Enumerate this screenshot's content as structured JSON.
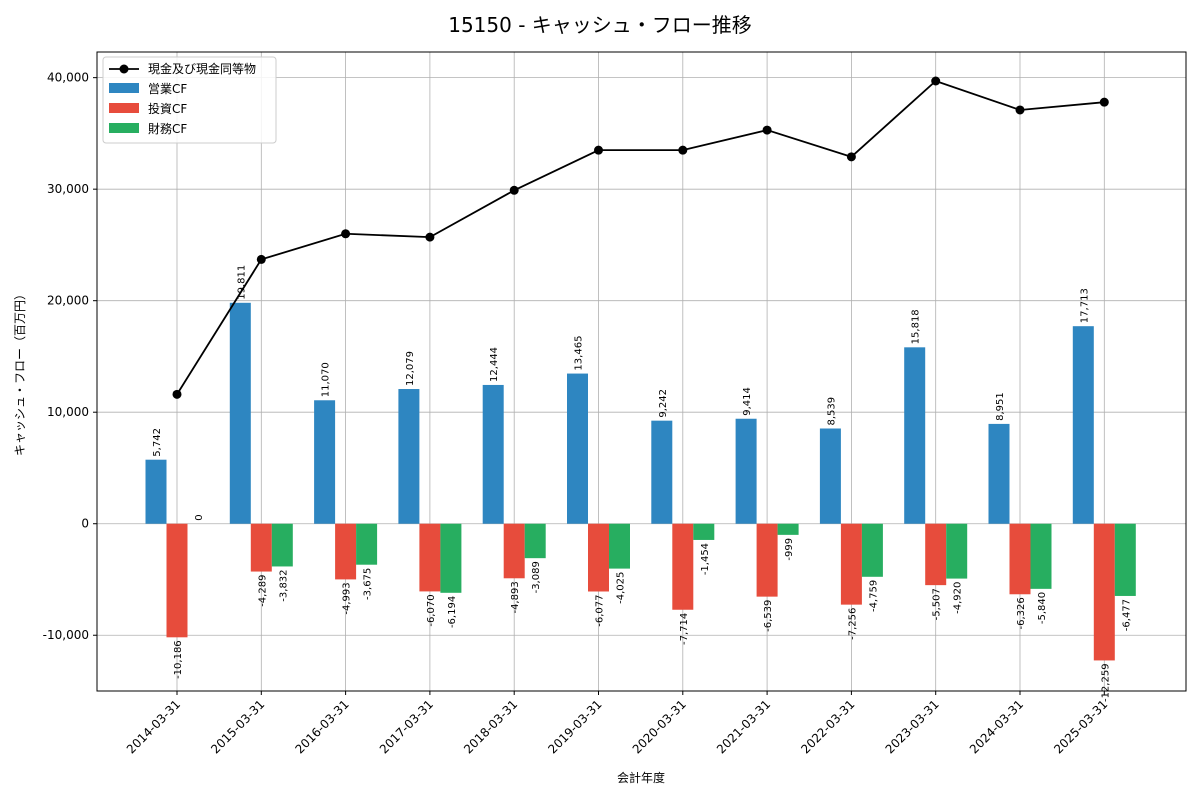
{
  "chart_data": {
    "type": "bar",
    "title": "15150 - キャッシュ・フロー推移",
    "xlabel": "会計年度",
    "ylabel": "キャッシュ・フロー（百万円）",
    "categories": [
      "2014-03-31",
      "2015-03-31",
      "2016-03-31",
      "2017-03-31",
      "2018-03-31",
      "2019-03-31",
      "2020-03-31",
      "2021-03-31",
      "2022-03-31",
      "2023-03-31",
      "2024-03-31",
      "2025-03-31"
    ],
    "ylim": [
      -15000,
      42300
    ],
    "yticks": [
      -10000,
      0,
      10000,
      20000,
      30000,
      40000
    ],
    "ytick_labels": [
      "-10,000",
      "0",
      "10,000",
      "20,000",
      "30,000",
      "40,000"
    ],
    "grid": true,
    "legend_position": "top-left",
    "line": {
      "name": "現金及び現金同等物",
      "color": "#000000",
      "values": [
        11600,
        23700,
        26000,
        25700,
        29900,
        33500,
        33500,
        35300,
        32900,
        39700,
        37100,
        37800
      ]
    },
    "series": [
      {
        "name": "営業CF",
        "color": "#2e86c1",
        "values": [
          5742,
          19811,
          11070,
          12079,
          12444,
          13465,
          9242,
          9414,
          8539,
          15818,
          8951,
          17713
        ],
        "labels": [
          "5,742",
          "19,811",
          "11,070",
          "12,079",
          "12,444",
          "13,465",
          "9,242",
          "9,414",
          "8,539",
          "15,818",
          "8,951",
          "17,713"
        ]
      },
      {
        "name": "投資CF",
        "color": "#e74c3c",
        "values": [
          -10186,
          -4289,
          -4993,
          -6070,
          -4893,
          -6077,
          -7714,
          -6539,
          -7256,
          -5507,
          -6326,
          -12259
        ],
        "labels": [
          "-10,186",
          "-4,289",
          "-4,993",
          "-6,070",
          "-4,893",
          "-6,077",
          "-7,714",
          "-6,539",
          "-7,256",
          "-5,507",
          "-6,326",
          "-12,259"
        ]
      },
      {
        "name": "財務CF",
        "color": "#27ae60",
        "values": [
          0,
          -3832,
          -3675,
          -6194,
          -3089,
          -4025,
          -1454,
          -999,
          -4759,
          -4920,
          -5840,
          -6477
        ],
        "labels": [
          "0",
          "-3,832",
          "-3,675",
          "-6,194",
          "-3,089",
          "-4,025",
          "-1,454",
          "-999",
          "-4,759",
          "-4,920",
          "-5,840",
          "-6,477"
        ]
      }
    ]
  }
}
